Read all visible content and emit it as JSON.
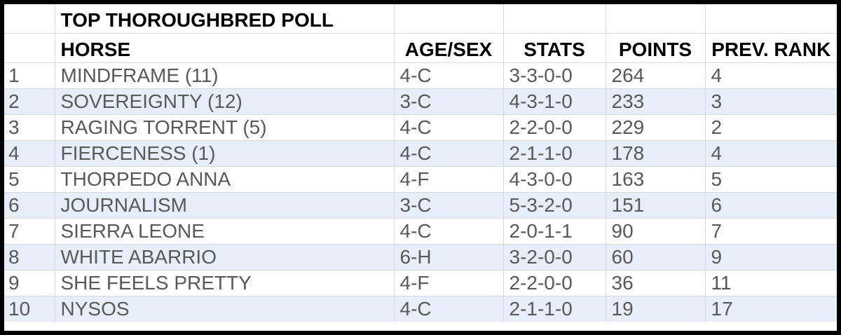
{
  "title": "TOP THOROUGHBRED POLL",
  "headers": {
    "horse": "HORSE",
    "age_sex": "AGE/SEX",
    "stats": "STATS",
    "points": "POINTS",
    "prev_rank": "PREV. RANK"
  },
  "rows": [
    {
      "rank": "1",
      "horse": "MINDFRAME (11)",
      "age_sex": "4-C",
      "stats": "3-3-0-0",
      "points": "264",
      "prev_rank": "4"
    },
    {
      "rank": "2",
      "horse": "SOVEREIGNTY (12)",
      "age_sex": "3-C",
      "stats": "4-3-1-0",
      "points": "233",
      "prev_rank": "3"
    },
    {
      "rank": "3",
      "horse": "RAGING TORRENT (5)",
      "age_sex": "4-C",
      "stats": "2-2-0-0",
      "points": "229",
      "prev_rank": "2"
    },
    {
      "rank": "4",
      "horse": "FIERCENESS (1)",
      "age_sex": "4-C",
      "stats": "2-1-1-0",
      "points": "178",
      "prev_rank": "4"
    },
    {
      "rank": "5",
      "horse": "THORPEDO ANNA",
      "age_sex": "4-F",
      "stats": "4-3-0-0",
      "points": "163",
      "prev_rank": "5"
    },
    {
      "rank": "6",
      "horse": "JOURNALISM",
      "age_sex": "3-C",
      "stats": "5-3-2-0",
      "points": "151",
      "prev_rank": "6"
    },
    {
      "rank": "7",
      "horse": "SIERRA LEONE",
      "age_sex": "4-C",
      "stats": "2-0-1-1",
      "points": "90",
      "prev_rank": "7"
    },
    {
      "rank": "8",
      "horse": "WHITE ABARRIO",
      "age_sex": "6-H",
      "stats": "3-2-0-0",
      "points": "60",
      "prev_rank": "9"
    },
    {
      "rank": "9",
      "horse": "SHE FEELS PRETTY",
      "age_sex": "4-F",
      "stats": "2-2-0-0",
      "points": "36",
      "prev_rank": "11"
    },
    {
      "rank": "10",
      "horse": "NYSOS",
      "age_sex": "4-C",
      "stats": "2-1-1-0",
      "points": "19",
      "prev_rank": "17"
    }
  ],
  "colors": {
    "border": "#000000",
    "alt_row": "#e8eef9",
    "grid": "#d9d9d9",
    "text": "#595959",
    "header_text": "#000000"
  }
}
